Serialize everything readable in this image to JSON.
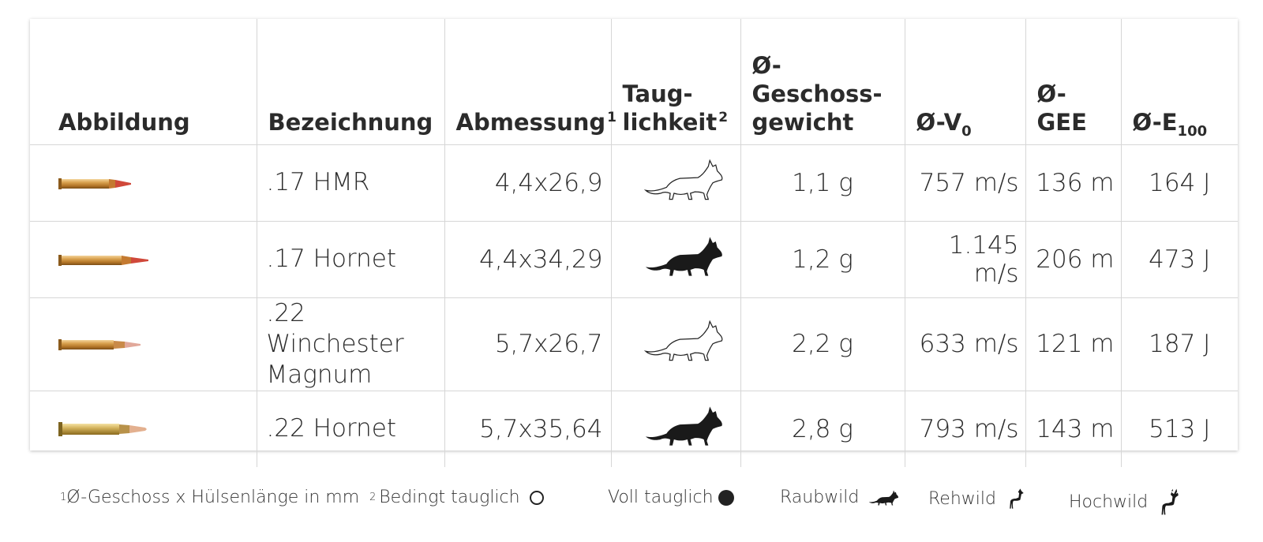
{
  "headers": {
    "abbildung": "Abbildung",
    "bezeichnung": "Bezeichnung",
    "abmessung": "Abmessung",
    "abmessung_sup": "1",
    "tauglichkeit_l1": "Taug-",
    "tauglichkeit_l2": "lichkeit",
    "tauglichkeit_sup": "2",
    "gewicht_l1": "Ø-Geschoss-",
    "gewicht_l2": "gewicht",
    "v0": "Ø-V",
    "v0_sub": "0",
    "gee": "Ø-GEE",
    "e100": "Ø-E",
    "e100_sub": "100"
  },
  "rows": [
    {
      "cartridge_icon": "brass-cartridge-icon",
      "name_l1": ".17 HMR",
      "name_l2": "",
      "abmessung": "4,4x26,9",
      "tauglichkeit": "bedingt",
      "tauglichkeit_icon": "fox-outline-icon",
      "gewicht": "1,1 g",
      "v0": "757 m/s",
      "gee": "136 m",
      "e100": "164 J"
    },
    {
      "cartridge_icon": "brass-cartridge-icon",
      "name_l1": ".17 Hornet",
      "name_l2": "",
      "abmessung": "4,4x34,29",
      "tauglichkeit": "voll",
      "tauglichkeit_icon": "fox-filled-icon",
      "gewicht": "1,2 g",
      "v0": "1.145 m/s",
      "gee": "206 m",
      "e100": "473 J"
    },
    {
      "cartridge_icon": "brass-cartridge-icon",
      "name_l1": ".22 Winchester",
      "name_l2": "Magnum",
      "abmessung": "5,7x26,7",
      "tauglichkeit": "bedingt",
      "tauglichkeit_icon": "fox-outline-icon",
      "gewicht": "2,2 g",
      "v0": "633 m/s",
      "gee": "121 m",
      "e100": "187 J"
    },
    {
      "cartridge_icon": "brass-cartridge-icon",
      "name_l1": ".22 Hornet",
      "name_l2": "",
      "abmessung": "5,7x35,64",
      "tauglichkeit": "voll",
      "tauglichkeit_icon": "fox-filled-icon",
      "gewicht": "2,8 g",
      "v0": "793 m/s",
      "gee": "143 m",
      "e100": "513 J"
    }
  ],
  "legend": {
    "footnote1_sup": "1",
    "footnote1": "Ø-Geschoss x Hülsenlänge in mm",
    "footnote2_sup": "2",
    "bedingt": "Bedingt tauglich",
    "voll": "Voll tauglich",
    "raubwild": "Raubwild",
    "rehwild": "Rehwild",
    "hochwild": "Hochwild"
  },
  "colors": {
    "text": "#2b2b2b",
    "border": "#d6d6d6",
    "brass": "#c9933e",
    "bullet_tip": "#d0483a",
    "icon_fill": "#1a1a1a"
  }
}
